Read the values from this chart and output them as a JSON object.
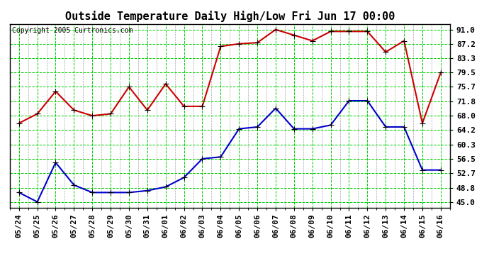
{
  "title": "Outside Temperature Daily High/Low Fri Jun 17 00:00",
  "copyright": "Copyright 2005 Curtronics.com",
  "x_labels": [
    "05/24",
    "05/25",
    "05/26",
    "05/27",
    "05/28",
    "05/29",
    "05/30",
    "05/31",
    "06/01",
    "06/02",
    "06/03",
    "06/04",
    "06/05",
    "06/06",
    "06/07",
    "06/08",
    "06/09",
    "06/10",
    "06/11",
    "06/12",
    "06/13",
    "06/14",
    "06/15",
    "06/16"
  ],
  "high_temps": [
    66.0,
    68.5,
    74.5,
    69.5,
    68.0,
    68.5,
    75.7,
    69.5,
    76.5,
    70.5,
    70.5,
    86.5,
    87.2,
    87.5,
    91.0,
    89.5,
    88.0,
    90.5,
    90.5,
    90.5,
    85.0,
    88.0,
    66.0,
    79.5
  ],
  "low_temps": [
    47.5,
    45.0,
    55.5,
    49.5,
    47.5,
    47.5,
    47.5,
    48.0,
    49.0,
    51.5,
    56.5,
    57.0,
    64.5,
    65.0,
    70.0,
    64.5,
    64.5,
    65.5,
    72.0,
    72.0,
    65.0,
    65.0,
    53.5,
    53.5
  ],
  "high_color": "#cc0000",
  "low_color": "#0000cc",
  "grid_color": "#00cc00",
  "bg_color": "#ffffff",
  "yticks": [
    45.0,
    48.8,
    52.7,
    56.5,
    60.3,
    64.2,
    68.0,
    71.8,
    75.7,
    79.5,
    83.3,
    87.2,
    91.0
  ],
  "ylim": [
    43.5,
    92.5
  ],
  "title_fontsize": 11,
  "copyright_fontsize": 7,
  "tick_fontsize": 8,
  "marker": "+",
  "marker_size": 6,
  "line_width": 1.5,
  "fig_width": 6.9,
  "fig_height": 3.75,
  "dpi": 100
}
